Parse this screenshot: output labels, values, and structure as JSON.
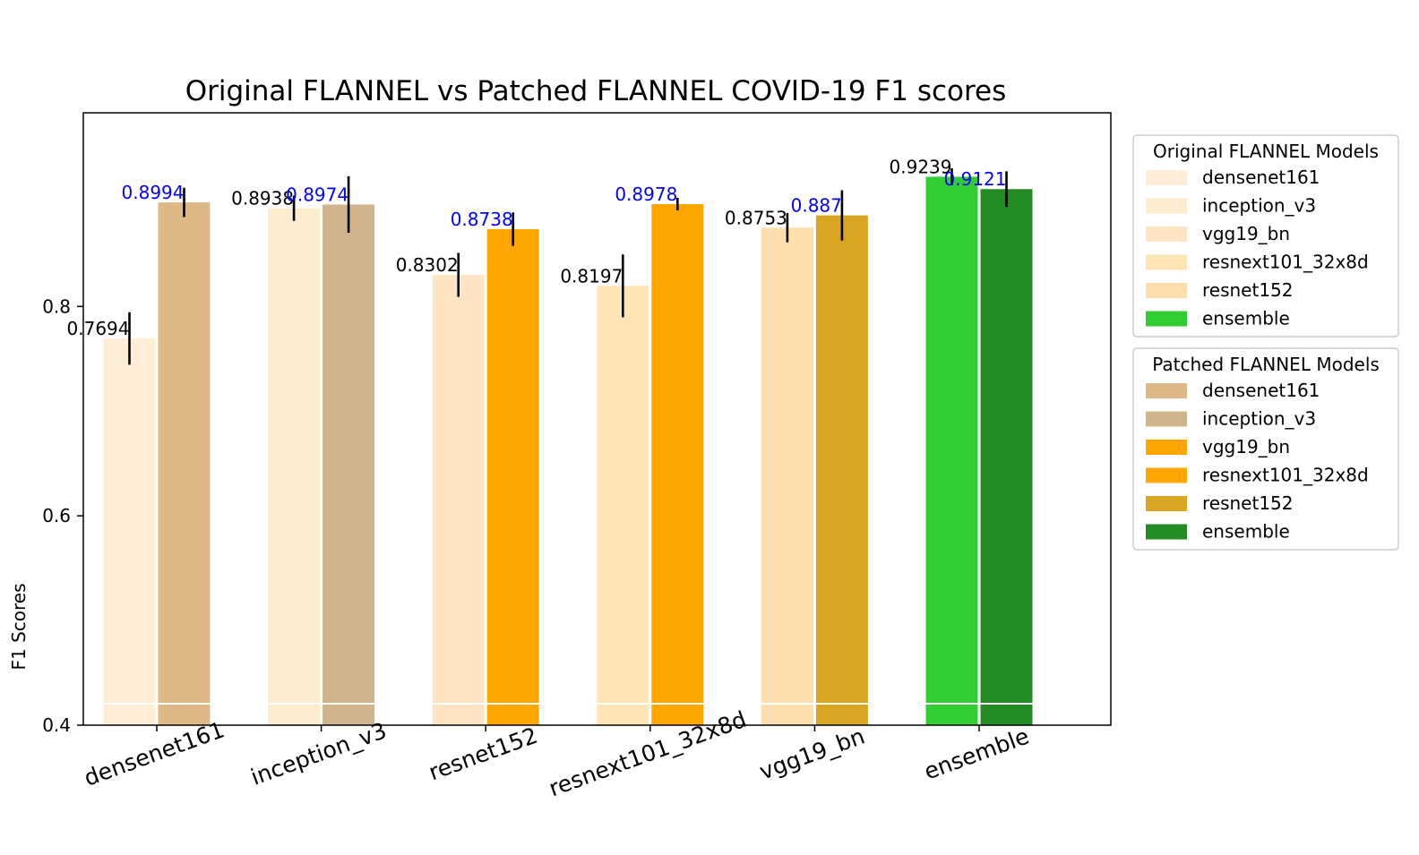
{
  "chart_data": {
    "type": "bar",
    "title": "Original FLANNEL vs Patched FLANNEL COVID-19 F1 scores",
    "xlabel": "",
    "ylabel": "F1 Scores",
    "ylim": [
      0.4,
      0.985
    ],
    "yticks": [
      0.4,
      0.6,
      0.8
    ],
    "ytick_labels": [
      "0.4",
      "0.6",
      "0.8"
    ],
    "grid": false,
    "categories": [
      "densenet161",
      "inception_v3",
      "resnet152",
      "resnext101_32x8d",
      "vgg19_bn",
      "ensemble"
    ],
    "series": [
      {
        "name": "Original FLANNEL Models",
        "values": [
          0.7694,
          0.8938,
          0.8302,
          0.8197,
          0.8753,
          0.9239
        ],
        "labels": [
          "0.7694",
          "0.8938",
          "0.8302",
          "0.8197",
          "0.8753",
          "0.9239"
        ],
        "errors": [
          0.025,
          0.012,
          0.021,
          0.03,
          0.014,
          0.008
        ],
        "colors": [
          "#FFEED5",
          "#FFEBCD",
          "#FFE4C4",
          "#FFE4B5",
          "#FFDEAD",
          "#32CD32"
        ],
        "label_color": "#000000"
      },
      {
        "name": "Patched FLANNEL Models",
        "values": [
          0.8994,
          0.8974,
          0.8738,
          0.8978,
          0.887,
          0.9121
        ],
        "labels": [
          "0.8994",
          "0.8974",
          "0.8738",
          "0.8978",
          "0.887",
          "0.9121"
        ],
        "errors": [
          0.014,
          0.027,
          0.016,
          0.006,
          0.024,
          0.017
        ],
        "colors": [
          "#DEB887",
          "#D2B48C",
          "#FFA500",
          "#FFA500",
          "#DAA520",
          "#228B22"
        ],
        "label_color": "#0000FF"
      }
    ],
    "legend": [
      {
        "title": "Original FLANNEL Models",
        "entries": [
          {
            "label": "densenet161",
            "color": "#FFEED5"
          },
          {
            "label": "inception_v3",
            "color": "#FFEBCD"
          },
          {
            "label": "vgg19_bn",
            "color": "#FFE4C4"
          },
          {
            "label": "resnext101_32x8d",
            "color": "#FFE4B5"
          },
          {
            "label": "resnet152",
            "color": "#FFDEAD"
          },
          {
            "label": "ensemble",
            "color": "#32CD32"
          }
        ]
      },
      {
        "title": "Patched FLANNEL Models",
        "entries": [
          {
            "label": "densenet161",
            "color": "#DEB887"
          },
          {
            "label": "inception_v3",
            "color": "#D2B48C"
          },
          {
            "label": "vgg19_bn",
            "color": "#FFA500"
          },
          {
            "label": "resnext101_32x8d",
            "color": "#FFA500"
          },
          {
            "label": "resnet152",
            "color": "#DAA520"
          },
          {
            "label": "ensemble",
            "color": "#228B22"
          }
        ]
      }
    ],
    "legend_placement": "outside right"
  }
}
